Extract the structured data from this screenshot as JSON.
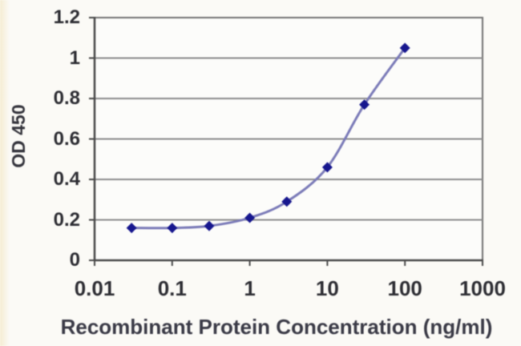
{
  "chart_data": {
    "type": "line",
    "title": "",
    "xlabel": "Recombinant Protein Concentration (ng/ml)",
    "ylabel": "OD 450",
    "x_scale": "log",
    "x": [
      0.03,
      0.1,
      0.3,
      1,
      3,
      10,
      30,
      100
    ],
    "y": [
      0.16,
      0.16,
      0.17,
      0.21,
      0.29,
      0.46,
      0.77,
      1.05
    ],
    "xlim": [
      0.01,
      1000
    ],
    "ylim": [
      0,
      1.2
    ],
    "x_ticks": [
      {
        "value": 0.01,
        "label": "0.01"
      },
      {
        "value": 0.1,
        "label": "0.1"
      },
      {
        "value": 1,
        "label": "1"
      },
      {
        "value": 10,
        "label": "10"
      },
      {
        "value": 100,
        "label": "100"
      },
      {
        "value": 1000,
        "label": "1000"
      }
    ],
    "y_ticks": [
      {
        "value": 0,
        "label": "0"
      },
      {
        "value": 0.2,
        "label": "0.2"
      },
      {
        "value": 0.4,
        "label": "0.4"
      },
      {
        "value": 0.6,
        "label": "0.6"
      },
      {
        "value": 0.8,
        "label": "0.8"
      },
      {
        "value": 1,
        "label": "1"
      },
      {
        "value": 1.2,
        "label": "1.2"
      }
    ],
    "grid": "horizontal",
    "legend": "none",
    "marker": "diamond",
    "colors": {
      "line": "#7b7bb8",
      "marker": "#17178e",
      "gridline": "#8d8d8d",
      "axis": "#4a4a4a",
      "border": "#757575",
      "plot_background": "#fcfcfa"
    }
  }
}
